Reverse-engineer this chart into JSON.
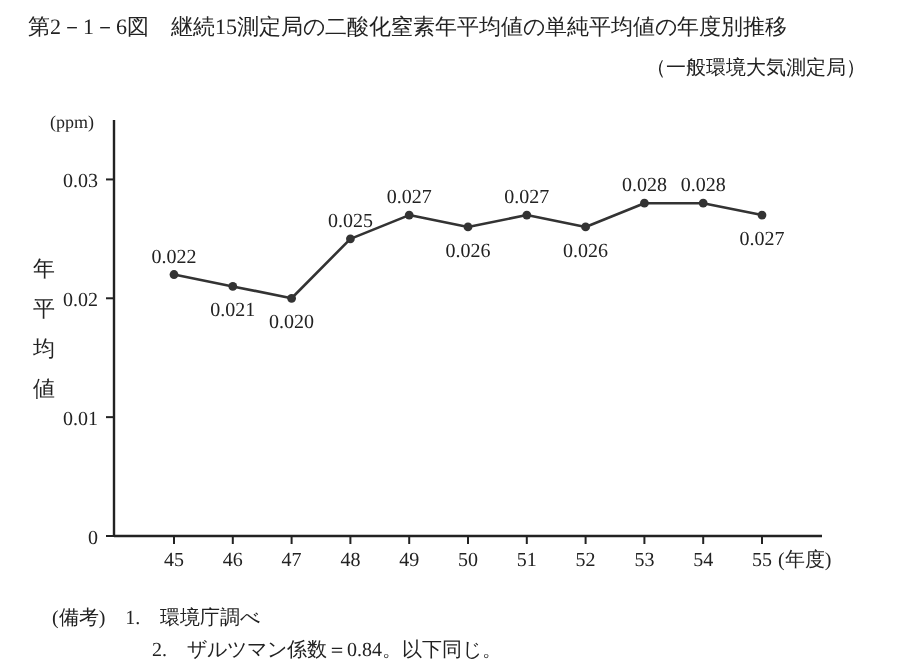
{
  "chart_data": {
    "type": "line",
    "title": "第2－1－6図　継続15測定局の二酸化窒素年平均値の単純平均値の年度別推移",
    "subtitle": "（一般環境大気測定局）",
    "ylabel": "年平均値",
    "xlabel": "(年度)",
    "categories": [
      "45",
      "46",
      "47",
      "48",
      "49",
      "50",
      "51",
      "52",
      "53",
      "54",
      "55"
    ],
    "series": [
      {
        "color": "#333333",
        "values": [
          0.022,
          0.021,
          0.02,
          0.025,
          0.027,
          0.026,
          0.027,
          0.026,
          0.028,
          0.028,
          0.027
        ],
        "value_labels": [
          "0.022",
          "0.021",
          "0.020",
          "0.025",
          "0.027",
          "0.026",
          "0.027",
          "0.026",
          "0.028",
          "0.028",
          "0.027"
        ]
      }
    ],
    "ylim": [
      0,
      0.035
    ],
    "yticks": [
      0,
      0.01,
      0.02,
      0.03
    ],
    "marker": "circle",
    "line_style": "solid",
    "grid": false,
    "annotations": [
      "(ppm)",
      "(備考)　1.　環境庁調べ",
      "2.　ザルツマン係数＝0.84。以下同じ。"
    ]
  }
}
